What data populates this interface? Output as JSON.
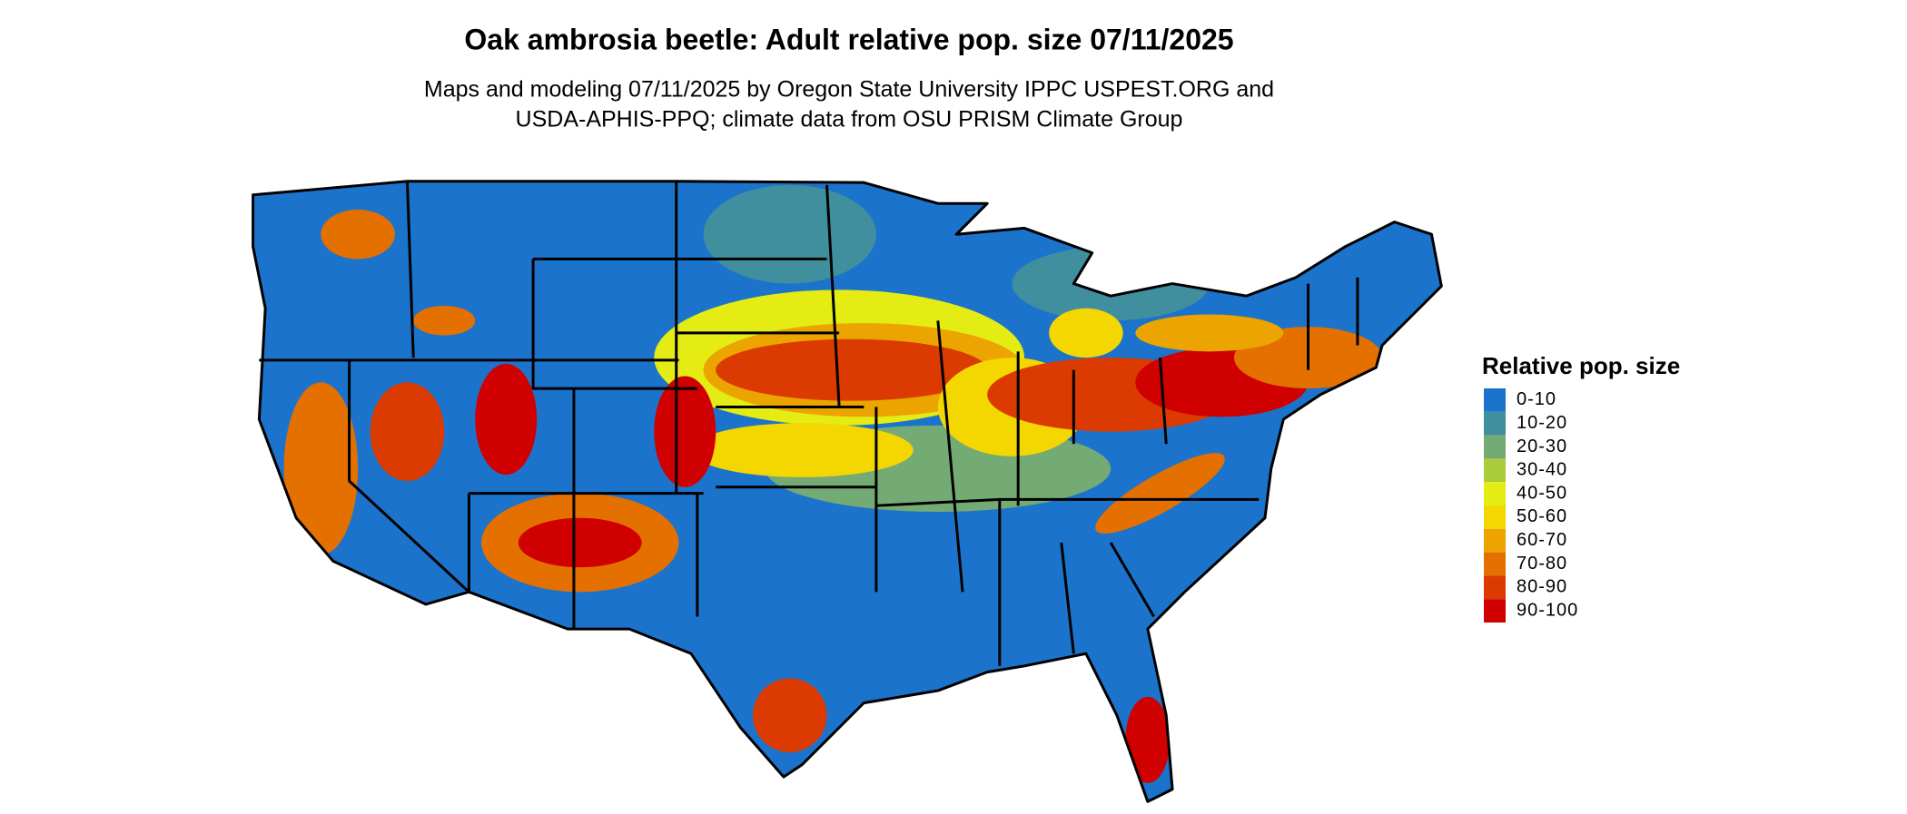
{
  "header": {
    "title": "Oak ambrosia beetle: Adult relative pop. size 07/11/2025",
    "subtitle": [
      "Maps and modeling 07/11/2025 by Oregon State University IPPC USPEST.ORG and",
      "USDA-APHIS-PPQ; climate data from OSU PRISM Climate Group"
    ]
  },
  "legend": {
    "title": "Relative pop. size",
    "items": [
      {
        "label": "0-10",
        "color": "#1c73cc"
      },
      {
        "label": "10-20",
        "color": "#3f8f9f"
      },
      {
        "label": "20-30",
        "color": "#74ab74"
      },
      {
        "label": "30-40",
        "color": "#aacb3a"
      },
      {
        "label": "40-50",
        "color": "#e4ec14"
      },
      {
        "label": "50-60",
        "color": "#f4d600"
      },
      {
        "label": "60-70",
        "color": "#eba400"
      },
      {
        "label": "70-80",
        "color": "#e47000"
      },
      {
        "label": "80-90",
        "color": "#db3a00"
      },
      {
        "label": "90-100",
        "color": "#d00000"
      }
    ]
  }
}
